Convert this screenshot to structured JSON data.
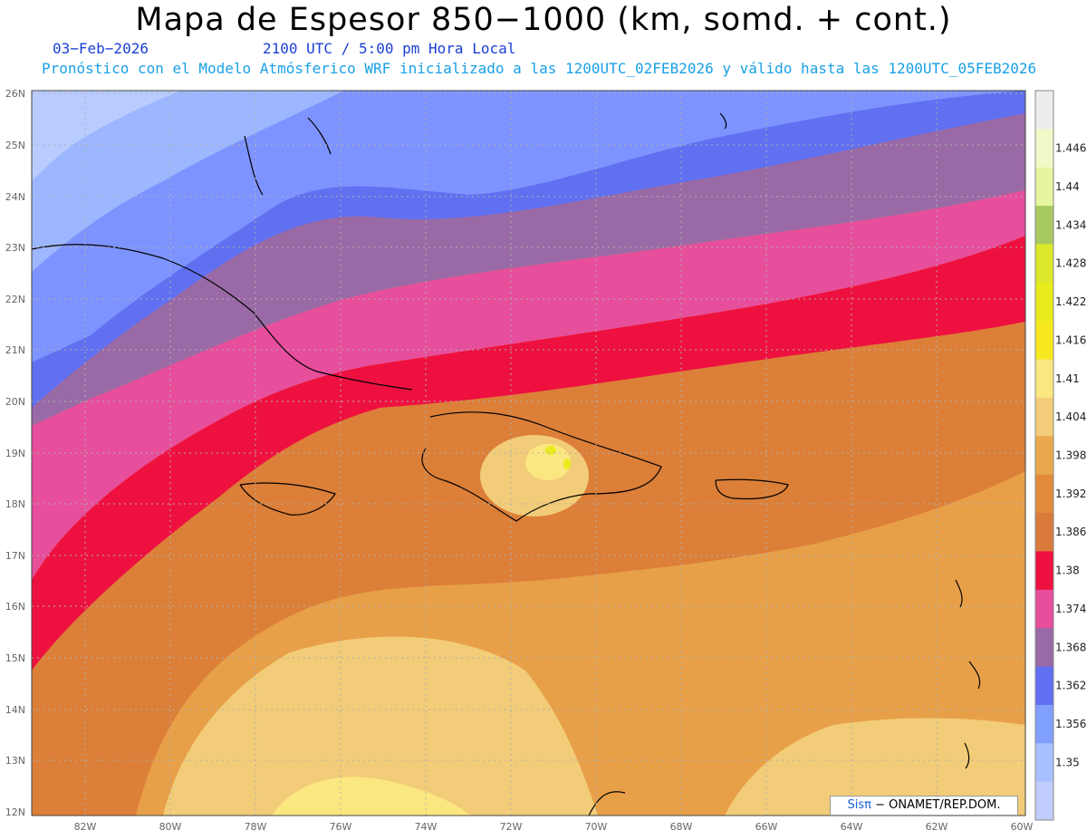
{
  "header": {
    "title": "Mapa de Espesor 850−1000 (km, somd. + cont.)",
    "date": "03−Feb−2026",
    "time": "2100 UTC / 5:00 pm Hora Local",
    "model_info": "Pronóstico con el Modelo Atmósferico WRF inicializado a las 1200UTC_02FEB2026 y válido hasta las  1200UTC_05FEB2026"
  },
  "map": {
    "lat_labels": [
      "26N",
      "25N",
      "24N",
      "23N",
      "22N",
      "21N",
      "20N",
      "19N",
      "18N",
      "17N",
      "16N",
      "15N",
      "14N",
      "13N",
      "12N"
    ],
    "lon_labels": [
      "82W",
      "80W",
      "78W",
      "76W",
      "74W",
      "72W",
      "70W",
      "68W",
      "66W",
      "64W",
      "62W",
      "60W"
    ],
    "credit_sis": "Sisπ",
    "credit_rest": " − ONAMET/REP.DOM."
  },
  "colorbar": {
    "labels": [
      "1.446",
      "1.44",
      "1.434",
      "1.428",
      "1.422",
      "1.416",
      "1.41",
      "1.404",
      "1.398",
      "1.392",
      "1.386",
      "1.38",
      "1.374",
      "1.368",
      "1.362",
      "1.356",
      "1.35"
    ],
    "colors": [
      "#ececec",
      "#f2f8c8",
      "#e6f5a0",
      "#a8c960",
      "#dde82a",
      "#e8ec1c",
      "#f8e820",
      "#fbe780",
      "#f2cc78",
      "#eaa84e",
      "#e08a3a",
      "#d97a3a",
      "#ee1140",
      "#e74e9c",
      "#9a6aa6",
      "#6070f0",
      "#80a0ff",
      "#a8c0ff",
      "#c0cdfc"
    ]
  }
}
